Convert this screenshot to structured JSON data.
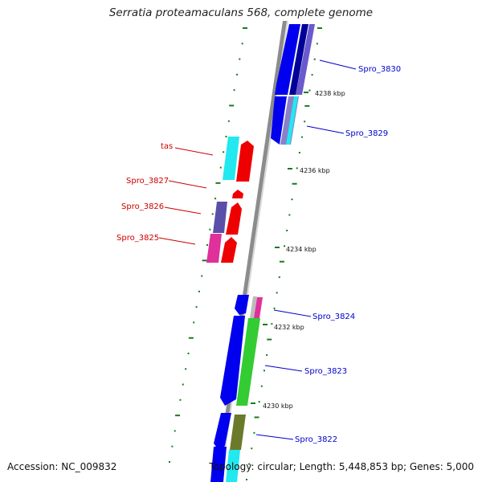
{
  "title": "Serratia proteamaculans 568, complete genome",
  "footer": {
    "accession": "Accession: NC_009832",
    "summary": "Topology: circular; Length: 5,448,853 bp; Genes: 5,000"
  },
  "ticks": [
    "4238 kbp",
    "4236 kbp",
    "4234 kbp",
    "4232 kbp",
    "4230 kbp"
  ],
  "genes": {
    "forward": [
      "Spro_3830",
      "Spro_3829",
      "Spro_3824",
      "Spro_3823",
      "Spro_3822"
    ],
    "reverse": [
      "tas",
      "Spro_3827",
      "Spro_3826",
      "Spro_3825"
    ]
  },
  "colors": {
    "forward_label": "#0000cc",
    "reverse_label": "#cc0000",
    "backbone": "#8c8c8c",
    "tick_mark": "#1a7a1a",
    "gene_blue": "#0000ee",
    "gene_red": "#ee0000",
    "gene_cyan": "#22e8f0",
    "gene_green": "#33cc33",
    "gene_olive": "#6b7a2a",
    "gene_purple": "#5a4fa8",
    "gene_magenta": "#e0309a"
  }
}
